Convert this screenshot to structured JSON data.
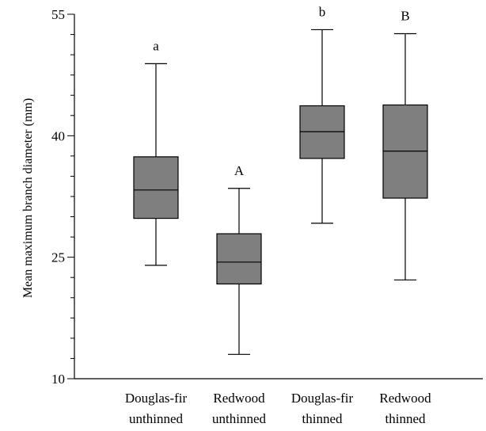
{
  "chart_data": {
    "type": "box",
    "ylabel": "Mean maximum branch diameter (mm)",
    "xlabel": "",
    "ylim": [
      10,
      55
    ],
    "major_ticks": [
      10,
      25,
      40,
      55
    ],
    "minor_step": 2.5,
    "grid": false,
    "box_color": "#7f7f7f",
    "categories": [
      [
        "Douglas-fir",
        "unthinned"
      ],
      [
        "Redwood",
        "unthinned"
      ],
      [
        "Douglas-fir",
        "thinned"
      ],
      [
        "Redwood",
        "thinned"
      ]
    ],
    "boxes": [
      {
        "min": 24.0,
        "q1": 29.8,
        "median": 33.3,
        "q3": 37.4,
        "max": 48.9,
        "label": "a"
      },
      {
        "min": 13.0,
        "q1": 21.7,
        "median": 24.4,
        "q3": 27.9,
        "max": 33.5,
        "label": "A"
      },
      {
        "min": 29.2,
        "q1": 37.2,
        "median": 40.5,
        "q3": 43.7,
        "max": 53.1,
        "label": "b"
      },
      {
        "min": 22.2,
        "q1": 32.3,
        "median": 38.1,
        "q3": 43.8,
        "max": 52.6,
        "label": "B"
      }
    ]
  }
}
